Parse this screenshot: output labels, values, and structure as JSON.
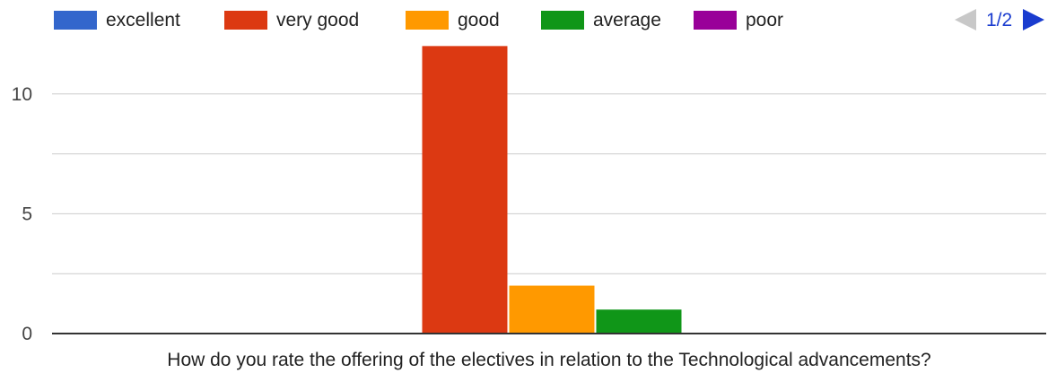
{
  "chart_data": {
    "type": "bar",
    "categories": [
      "How do you rate the offering of the electives in relation to the Technological advancements?"
    ],
    "series": [
      {
        "name": "excellent",
        "values": [
          0
        ]
      },
      {
        "name": "very good",
        "values": [
          12
        ]
      },
      {
        "name": "good",
        "values": [
          2
        ]
      },
      {
        "name": "average",
        "values": [
          1
        ]
      },
      {
        "name": "poor",
        "values": [
          0
        ]
      }
    ],
    "colors": [
      "#3366cc",
      "#dc3912",
      "#ff9900",
      "#109618",
      "#990099"
    ],
    "title": "",
    "xlabel": "How do you rate the offering of the electives in relation to the Technological advancements?",
    "ylabel": "",
    "ylim": [
      0,
      12.5
    ],
    "yticks": [
      0,
      5,
      10
    ],
    "gridlines": [
      0,
      2.5,
      5,
      7.5,
      10
    ],
    "grid": true,
    "legend_position": "top"
  },
  "legend_pager": {
    "label": "1/2",
    "prev_icon": "triangle-left-icon",
    "next_icon": "triangle-right-icon",
    "prev_color": "#c8c8c8",
    "next_color": "#1a3ccf"
  }
}
